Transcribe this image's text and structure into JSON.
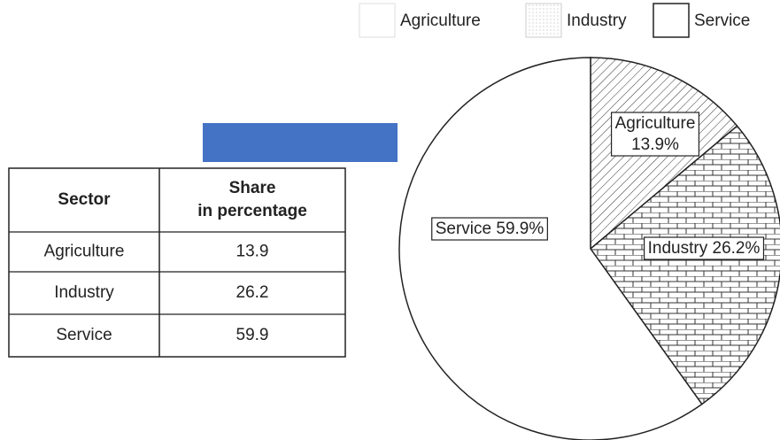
{
  "chart_data": {
    "type": "pie",
    "categories": [
      "Agriculture",
      "Industry",
      "Service"
    ],
    "values": [
      13.9,
      26.2,
      59.9
    ],
    "value_labels": [
      "13.9%",
      "26.2%",
      "59.9%"
    ]
  },
  "table": {
    "header": [
      [
        "Sector"
      ],
      [
        "Share",
        "in percentage"
      ]
    ],
    "rows": [
      [
        "Agriculture",
        "13.9"
      ],
      [
        "Industry",
        "26.2"
      ],
      [
        "Service",
        "59.9"
      ]
    ]
  }
}
